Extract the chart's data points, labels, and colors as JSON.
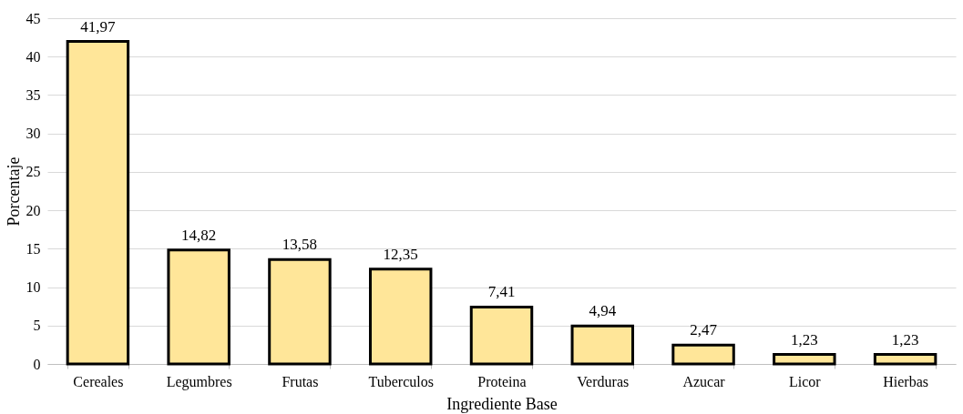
{
  "chart_data": {
    "type": "bar",
    "xlabel": "Ingrediente Base",
    "ylabel": "Porcentaje",
    "categories": [
      "Cereales",
      "Legumbres",
      "Frutas",
      "Tuberculos",
      "Proteina",
      "Verduras",
      "Azucar",
      "Licor",
      "Hierbas"
    ],
    "values": [
      41.97,
      14.82,
      13.58,
      12.35,
      7.41,
      4.94,
      2.47,
      1.23,
      1.23
    ],
    "value_labels": [
      "41,97",
      "14,82",
      "13,58",
      "12,35",
      "7,41",
      "4,94",
      "2,47",
      "1,23",
      "1,23"
    ],
    "color": "#ffe699",
    "ylim": [
      0,
      45
    ],
    "yticks": [
      0,
      5,
      10,
      15,
      20,
      25,
      30,
      35,
      40,
      45
    ],
    "grid": "y"
  }
}
